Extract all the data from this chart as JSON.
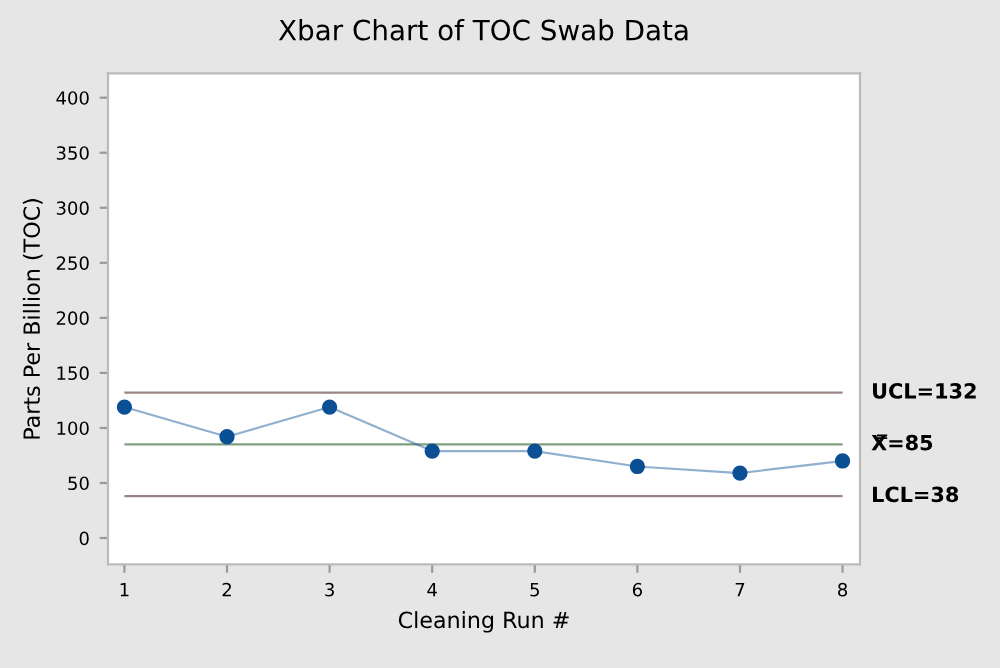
{
  "chart_data": {
    "type": "line",
    "title": "Xbar Chart of TOC Swab Data",
    "xlabel": "Cleaning Run #",
    "ylabel": "Parts Per Billion (TOC)",
    "x": [
      1,
      2,
      3,
      4,
      5,
      6,
      7,
      8
    ],
    "series": [
      {
        "color": "#0b4f94",
        "values": [
          119,
          92,
          119,
          79,
          79,
          65,
          59,
          70
        ]
      }
    ],
    "marker": "circle",
    "line_style": "solid",
    "grid": false,
    "legend": false,
    "xlim": [
      0.84,
      8.17
    ],
    "xticks": [
      1,
      2,
      3,
      4,
      5,
      6,
      7,
      8
    ],
    "ylim": [
      -24,
      422
    ],
    "yticks": [
      0,
      50,
      100,
      150,
      200,
      250,
      300,
      350,
      400
    ],
    "ref_lines": [
      {
        "axis": "y",
        "value": 132,
        "label": "UCL=132",
        "color": "#9a8585"
      },
      {
        "axis": "y",
        "value": 85,
        "label": "X̿=85",
        "color": "#7f9f7f"
      },
      {
        "axis": "y",
        "value": 38,
        "label": "LCL=38",
        "color": "#9a8585"
      }
    ]
  }
}
